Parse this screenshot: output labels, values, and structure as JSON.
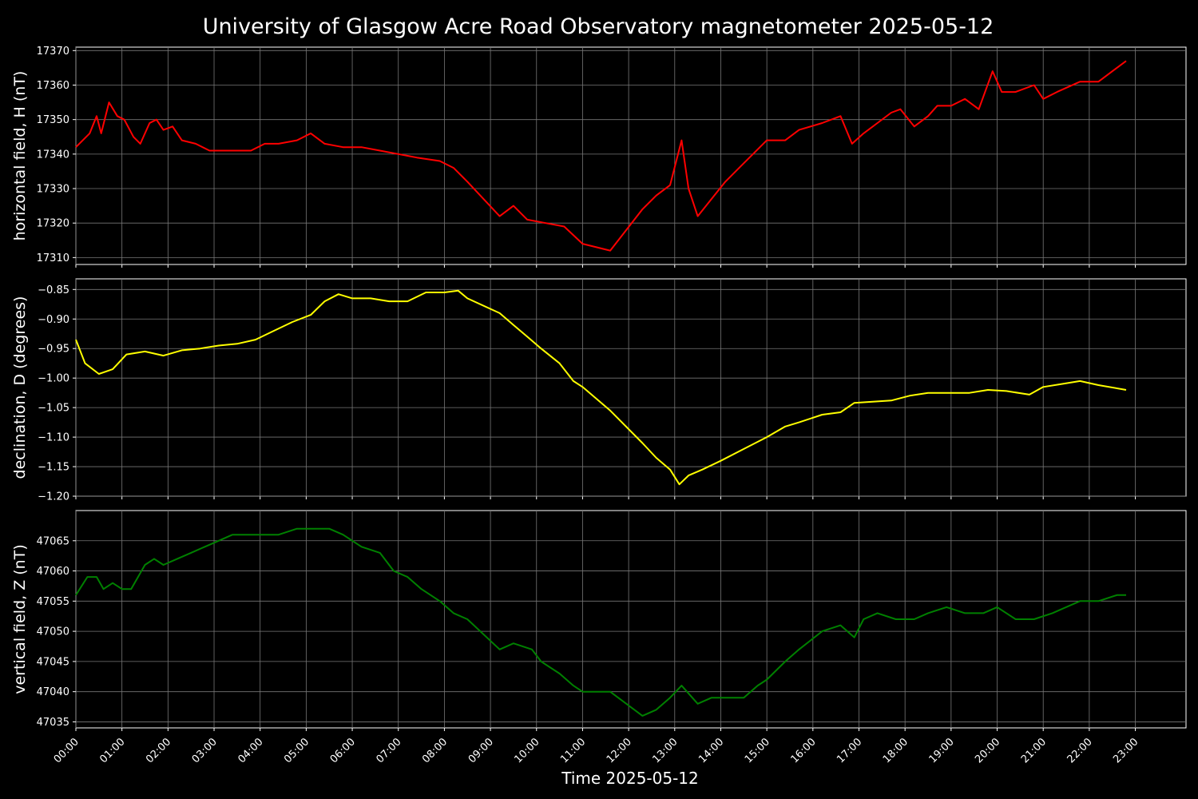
{
  "chart_data": {
    "type": "line",
    "title": "University of Glasgow Acre Road Observatory magnetometer 2025-05-12",
    "xlabel": "Time 2025-05-12",
    "x_ticks": [
      "00:00",
      "01:00",
      "02:00",
      "03:00",
      "04:00",
      "05:00",
      "06:00",
      "07:00",
      "08:00",
      "09:00",
      "10:00",
      "11:00",
      "12:00",
      "13:00",
      "14:00",
      "15:00",
      "16:00",
      "17:00",
      "18:00",
      "19:00",
      "20:00",
      "21:00",
      "22:00",
      "23:00"
    ],
    "xlim_hours": [
      0,
      24.1
    ],
    "grid": true,
    "panels": [
      {
        "name": "H",
        "ylabel": "horizontal field, H (nT)",
        "color": "#ff0000",
        "ylim": [
          17308,
          17371
        ],
        "yticks": [
          17310,
          17320,
          17330,
          17340,
          17350,
          17360,
          17370
        ],
        "ytick_labels": [
          "17310",
          "17320",
          "17330",
          "17340",
          "17350",
          "17360",
          "17370"
        ],
        "points": [
          [
            0,
            17342
          ],
          [
            0.3,
            17346
          ],
          [
            0.45,
            17351
          ],
          [
            0.55,
            17346
          ],
          [
            0.72,
            17355
          ],
          [
            0.9,
            17351
          ],
          [
            1.05,
            17350
          ],
          [
            1.25,
            17345
          ],
          [
            1.4,
            17343
          ],
          [
            1.6,
            17349
          ],
          [
            1.75,
            17350
          ],
          [
            1.9,
            17347
          ],
          [
            2.1,
            17348
          ],
          [
            2.3,
            17344
          ],
          [
            2.6,
            17343
          ],
          [
            2.9,
            17341
          ],
          [
            3.2,
            17341
          ],
          [
            3.5,
            17341
          ],
          [
            3.8,
            17341
          ],
          [
            4.1,
            17343
          ],
          [
            4.4,
            17343
          ],
          [
            4.8,
            17344
          ],
          [
            5.1,
            17346
          ],
          [
            5.4,
            17343
          ],
          [
            5.8,
            17342
          ],
          [
            6.2,
            17342
          ],
          [
            6.6,
            17341
          ],
          [
            7.0,
            17340
          ],
          [
            7.4,
            17339
          ],
          [
            7.9,
            17338
          ],
          [
            8.2,
            17336
          ],
          [
            8.5,
            17332
          ],
          [
            9.2,
            17322
          ],
          [
            9.5,
            17325
          ],
          [
            9.8,
            17321
          ],
          [
            10.2,
            17320
          ],
          [
            10.6,
            17319
          ],
          [
            11.0,
            17314
          ],
          [
            11.3,
            17313
          ],
          [
            11.6,
            17312
          ],
          [
            12.3,
            17324
          ],
          [
            12.6,
            17328
          ],
          [
            12.9,
            17331
          ],
          [
            13.15,
            17344
          ],
          [
            13.3,
            17330
          ],
          [
            13.5,
            17322
          ],
          [
            13.8,
            17327
          ],
          [
            14.1,
            17332
          ],
          [
            14.4,
            17336
          ],
          [
            14.7,
            17340
          ],
          [
            15.0,
            17344
          ],
          [
            15.4,
            17344
          ],
          [
            15.7,
            17347
          ],
          [
            16.2,
            17349
          ],
          [
            16.6,
            17351
          ],
          [
            16.85,
            17343
          ],
          [
            17.1,
            17346
          ],
          [
            17.4,
            17349
          ],
          [
            17.7,
            17352
          ],
          [
            17.9,
            17353
          ],
          [
            18.2,
            17348
          ],
          [
            18.5,
            17351
          ],
          [
            18.7,
            17354
          ],
          [
            19.0,
            17354
          ],
          [
            19.3,
            17356
          ],
          [
            19.6,
            17353
          ],
          [
            19.9,
            17364
          ],
          [
            20.1,
            17358
          ],
          [
            20.4,
            17358
          ],
          [
            20.8,
            17360
          ],
          [
            21.0,
            17356
          ],
          [
            21.3,
            17358
          ],
          [
            21.8,
            17361
          ],
          [
            22.2,
            17361
          ],
          [
            22.5,
            17364
          ],
          [
            22.8,
            17367
          ]
        ]
      },
      {
        "name": "D",
        "ylabel": "declination, D (degrees)",
        "color": "#ffff00",
        "ylim": [
          -1.2,
          -0.832
        ],
        "yticks": [
          -1.2,
          -1.15,
          -1.1,
          -1.05,
          -1.0,
          -0.95,
          -0.9,
          -0.85
        ],
        "ytick_labels": [
          "−1.20",
          "−1.15",
          "−1.10",
          "−1.05",
          "−1.00",
          "−0.95",
          "−0.90",
          "−0.85"
        ],
        "points": [
          [
            0,
            -0.935
          ],
          [
            0.2,
            -0.975
          ],
          [
            0.5,
            -0.993
          ],
          [
            0.8,
            -0.985
          ],
          [
            1.1,
            -0.96
          ],
          [
            1.5,
            -0.955
          ],
          [
            1.9,
            -0.962
          ],
          [
            2.3,
            -0.953
          ],
          [
            2.7,
            -0.95
          ],
          [
            3.1,
            -0.945
          ],
          [
            3.5,
            -0.942
          ],
          [
            3.9,
            -0.935
          ],
          [
            4.3,
            -0.92
          ],
          [
            4.7,
            -0.905
          ],
          [
            5.1,
            -0.893
          ],
          [
            5.4,
            -0.87
          ],
          [
            5.7,
            -0.858
          ],
          [
            6.0,
            -0.865
          ],
          [
            6.4,
            -0.865
          ],
          [
            6.8,
            -0.87
          ],
          [
            7.2,
            -0.87
          ],
          [
            7.6,
            -0.855
          ],
          [
            8.0,
            -0.855
          ],
          [
            8.3,
            -0.852
          ],
          [
            8.5,
            -0.865
          ],
          [
            9.2,
            -0.89
          ],
          [
            9.5,
            -0.91
          ],
          [
            9.8,
            -0.93
          ],
          [
            10.1,
            -0.95
          ],
          [
            10.5,
            -0.975
          ],
          [
            10.8,
            -1.005
          ],
          [
            11.0,
            -1.015
          ],
          [
            11.3,
            -1.035
          ],
          [
            11.6,
            -1.055
          ],
          [
            12.3,
            -1.11
          ],
          [
            12.6,
            -1.135
          ],
          [
            12.9,
            -1.155
          ],
          [
            13.1,
            -1.18
          ],
          [
            13.3,
            -1.165
          ],
          [
            13.6,
            -1.155
          ],
          [
            14.0,
            -1.14
          ],
          [
            14.5,
            -1.12
          ],
          [
            15.0,
            -1.1
          ],
          [
            15.4,
            -1.082
          ],
          [
            15.7,
            -1.075
          ],
          [
            16.2,
            -1.062
          ],
          [
            16.6,
            -1.058
          ],
          [
            16.9,
            -1.042
          ],
          [
            17.3,
            -1.04
          ],
          [
            17.7,
            -1.038
          ],
          [
            18.1,
            -1.03
          ],
          [
            18.5,
            -1.025
          ],
          [
            18.9,
            -1.025
          ],
          [
            19.4,
            -1.025
          ],
          [
            19.8,
            -1.02
          ],
          [
            20.2,
            -1.022
          ],
          [
            20.7,
            -1.028
          ],
          [
            21.0,
            -1.015
          ],
          [
            21.4,
            -1.01
          ],
          [
            21.8,
            -1.005
          ],
          [
            22.2,
            -1.012
          ],
          [
            22.8,
            -1.02
          ]
        ]
      },
      {
        "name": "Z",
        "ylabel": "vertical field, Z (nT)",
        "color": "#008000",
        "ylim": [
          47034,
          47070
        ],
        "yticks": [
          47035,
          47040,
          47045,
          47050,
          47055,
          47060,
          47065
        ],
        "ytick_labels": [
          "47035",
          "47040",
          "47045",
          "47050",
          "47055",
          "47060",
          "47065"
        ],
        "points": [
          [
            0,
            47056
          ],
          [
            0.25,
            47059
          ],
          [
            0.45,
            47059
          ],
          [
            0.6,
            47057
          ],
          [
            0.8,
            47058
          ],
          [
            1.0,
            47057
          ],
          [
            1.2,
            47057
          ],
          [
            1.5,
            47061
          ],
          [
            1.7,
            47062
          ],
          [
            1.9,
            47061
          ],
          [
            2.2,
            47062
          ],
          [
            2.5,
            47063
          ],
          [
            2.8,
            47064
          ],
          [
            3.1,
            47065
          ],
          [
            3.4,
            47066
          ],
          [
            3.7,
            47066
          ],
          [
            4.0,
            47066
          ],
          [
            4.4,
            47066
          ],
          [
            4.8,
            47067
          ],
          [
            5.2,
            47067
          ],
          [
            5.5,
            47067
          ],
          [
            5.8,
            47066
          ],
          [
            6.2,
            47064
          ],
          [
            6.6,
            47063
          ],
          [
            6.9,
            47060
          ],
          [
            7.2,
            47059
          ],
          [
            7.5,
            47057
          ],
          [
            7.9,
            47055
          ],
          [
            8.2,
            47053
          ],
          [
            8.5,
            47052
          ],
          [
            9.2,
            47047
          ],
          [
            9.5,
            47048
          ],
          [
            9.9,
            47047
          ],
          [
            10.1,
            47045
          ],
          [
            10.5,
            47043
          ],
          [
            10.8,
            47041
          ],
          [
            11.0,
            47040
          ],
          [
            11.3,
            47040
          ],
          [
            11.6,
            47040
          ],
          [
            12.3,
            47036
          ],
          [
            12.6,
            47037
          ],
          [
            12.9,
            47039
          ],
          [
            13.15,
            47041
          ],
          [
            13.5,
            47038
          ],
          [
            13.8,
            47039
          ],
          [
            14.1,
            47039
          ],
          [
            14.5,
            47039
          ],
          [
            14.8,
            47041
          ],
          [
            15.0,
            47042
          ],
          [
            15.4,
            47045
          ],
          [
            15.7,
            47047
          ],
          [
            16.2,
            47050
          ],
          [
            16.6,
            47051
          ],
          [
            16.9,
            47049
          ],
          [
            17.1,
            47052
          ],
          [
            17.4,
            47053
          ],
          [
            17.8,
            47052
          ],
          [
            18.2,
            47052
          ],
          [
            18.5,
            47053
          ],
          [
            18.9,
            47054
          ],
          [
            19.3,
            47053
          ],
          [
            19.7,
            47053
          ],
          [
            20.0,
            47054
          ],
          [
            20.4,
            47052
          ],
          [
            20.8,
            47052
          ],
          [
            21.2,
            47053
          ],
          [
            21.8,
            47055
          ],
          [
            22.2,
            47055
          ],
          [
            22.6,
            47056
          ],
          [
            22.8,
            47056
          ]
        ]
      }
    ]
  }
}
